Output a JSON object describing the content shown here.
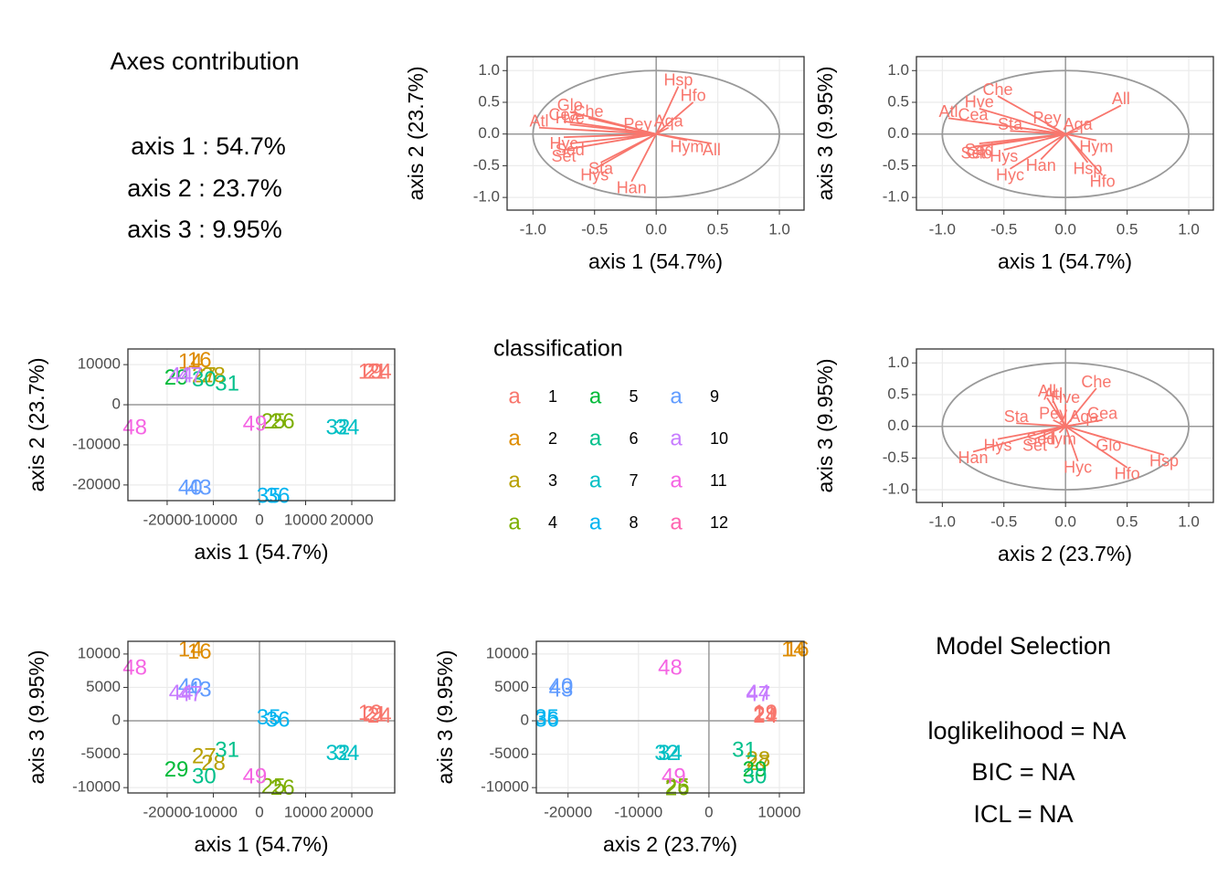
{
  "axes_contribution": {
    "title": "Axes contribution",
    "lines": [
      "axis 1 : 54.7%",
      "axis 2 : 23.7%",
      "axis 3 : 9.95%"
    ]
  },
  "model_selection": {
    "title": "Model Selection",
    "lines": [
      "loglikelihood = NA",
      "BIC = NA",
      "ICL = NA"
    ]
  },
  "legend": {
    "title": "classification",
    "key_glyph": "a",
    "classes": [
      "1",
      "2",
      "3",
      "4",
      "5",
      "6",
      "7",
      "8",
      "9",
      "10",
      "11",
      "12"
    ],
    "colors": [
      "#F8766D",
      "#DE8C00",
      "#B79F00",
      "#7CAE00",
      "#00BA38",
      "#00C08B",
      "#00BFC4",
      "#00B4F0",
      "#619CFF",
      "#C77CFF",
      "#F564E3",
      "#FF64B0"
    ]
  },
  "chart_data": [
    {
      "type": "correlation-circle",
      "xlabel": "axis 1 (54.7%)",
      "ylabel": "axis 2 (23.7%)",
      "color": "#F8766D",
      "xlim": [
        -1.21,
        1.2
      ],
      "ylim": [
        -1.2,
        1.22
      ],
      "xticks": [
        {
          "value": -1,
          "label": "-1.0"
        },
        -0.5,
        {
          "value": 0,
          "label": "0.0"
        },
        0.5,
        {
          "value": 1,
          "label": "1.0"
        }
      ],
      "yticks": [
        {
          "value": -1,
          "label": "-1.0"
        },
        -0.5,
        {
          "value": 0,
          "label": "0.0"
        },
        0.5,
        {
          "value": 1,
          "label": "1.0"
        }
      ],
      "variables": [
        "Hsp",
        "Hfo",
        "Aqa",
        "Hym",
        "All",
        "Han",
        "Sta",
        "Hys",
        "Set",
        "Sed",
        "Hyc",
        "Glo",
        "Che",
        "Atl",
        "Hve",
        "Cea",
        "Pey"
      ],
      "x": [
        0.18,
        0.3,
        0.1,
        0.25,
        0.45,
        -0.2,
        -0.45,
        -0.5,
        -0.75,
        -0.7,
        -0.75,
        -0.7,
        -0.55,
        -0.95,
        -0.7,
        -0.75,
        -0.15
      ],
      "y": [
        0.75,
        0.5,
        0.1,
        -0.1,
        -0.15,
        -0.75,
        -0.45,
        -0.55,
        -0.25,
        -0.15,
        -0.05,
        0.35,
        0.25,
        0.1,
        0.15,
        0.2,
        0.05
      ]
    },
    {
      "type": "correlation-circle",
      "xlabel": "axis 1 (54.7%)",
      "ylabel": "axis 3 (9.95%)",
      "color": "#F8766D",
      "xlim": [
        -1.21,
        1.2
      ],
      "ylim": [
        -1.2,
        1.22
      ],
      "xticks": [
        {
          "value": -1,
          "label": "-1.0"
        },
        -0.5,
        {
          "value": 0,
          "label": "0.0"
        },
        0.5,
        {
          "value": 1,
          "label": "1.0"
        }
      ],
      "yticks": [
        {
          "value": -1,
          "label": "-1.0"
        },
        -0.5,
        {
          "value": 0,
          "label": "0.0"
        },
        0.5,
        {
          "value": 1,
          "label": "1.0"
        }
      ],
      "variables": [
        "Hsp",
        "Hfo",
        "Aqa",
        "Hym",
        "All",
        "Han",
        "Sta",
        "Hys",
        "Set",
        "Sed",
        "Hyc",
        "Glo",
        "Che",
        "Atl",
        "Hve",
        "Cea",
        "Pey"
      ],
      "x": [
        0.18,
        0.3,
        0.1,
        0.25,
        0.45,
        -0.2,
        -0.45,
        -0.5,
        -0.75,
        -0.7,
        -0.45,
        -0.7,
        -0.55,
        -0.95,
        -0.7,
        -0.75,
        -0.15
      ],
      "y": [
        -0.45,
        -0.65,
        0.05,
        -0.1,
        0.45,
        -0.4,
        0.05,
        -0.25,
        -0.2,
        -0.15,
        -0.55,
        -0.2,
        0.6,
        0.25,
        0.4,
        0.2,
        0.15
      ]
    },
    {
      "type": "scatter",
      "xlabel": "axis 1 (54.7%)",
      "ylabel": "axis 2 (23.7%)",
      "xlim": [
        -28500,
        29300
      ],
      "ylim": [
        -23900,
        13900
      ],
      "xticks": [
        -20000,
        -10000,
        0,
        10000,
        20000
      ],
      "yticks": [
        -20000,
        -10000,
        0,
        10000
      ],
      "labels": [
        "19",
        "21",
        "24",
        "14",
        "16",
        "27",
        "28",
        "25",
        "26",
        "29",
        "30",
        "31",
        "32",
        "34",
        "35",
        "36",
        "40",
        "43",
        "44",
        "47",
        "48",
        "49"
      ],
      "classes": [
        "1",
        "1",
        "1",
        "2",
        "2",
        "3",
        "3",
        "4",
        "4",
        "5",
        "6",
        "6",
        "7",
        "7",
        "8",
        "8",
        "9",
        "9",
        "10",
        "10",
        "11",
        "11"
      ],
      "x": [
        24000,
        25000,
        26000,
        -15000,
        -13000,
        -12000,
        -10000,
        3000,
        5000,
        -18000,
        -12000,
        -7000,
        17000,
        19000,
        2000,
        4000,
        -15000,
        -13000,
        -17000,
        -15000,
        -27000,
        -1000
      ],
      "y": [
        8000,
        8000,
        8000,
        10500,
        10800,
        7000,
        7000,
        -4500,
        -4500,
        6500,
        6000,
        5000,
        -6000,
        -6000,
        -23000,
        -23000,
        -21000,
        -21000,
        7000,
        7000,
        -6000,
        -5000
      ]
    },
    {
      "type": "correlation-circle",
      "xlabel": "axis 2 (23.7%)",
      "ylabel": "axis 3 (9.95%)",
      "color": "#F8766D",
      "xlim": [
        -1.21,
        1.2
      ],
      "ylim": [
        -1.2,
        1.22
      ],
      "xticks": [
        {
          "value": -1,
          "label": "-1.0"
        },
        -0.5,
        {
          "value": 0,
          "label": "0.0"
        },
        0.5,
        {
          "value": 1,
          "label": "1.0"
        }
      ],
      "yticks": [
        {
          "value": -1,
          "label": "-1.0"
        },
        -0.5,
        {
          "value": 0,
          "label": "0.0"
        },
        0.5,
        {
          "value": 1,
          "label": "1.0"
        }
      ],
      "variables": [
        "Hsp",
        "Hfo",
        "Aqa",
        "Hym",
        "All",
        "Han",
        "Sta",
        "Hys",
        "Set",
        "Sed",
        "Hyc",
        "Glo",
        "Che",
        "Atl",
        "Hve",
        "Cea",
        "Pey"
      ],
      "x": [
        0.8,
        0.5,
        0.15,
        -0.05,
        -0.15,
        -0.75,
        -0.4,
        -0.55,
        -0.25,
        -0.2,
        0.1,
        0.35,
        0.25,
        -0.1,
        0.0,
        0.3,
        -0.1
      ],
      "y": [
        -0.45,
        -0.65,
        0.05,
        -0.1,
        0.45,
        -0.4,
        0.05,
        -0.2,
        -0.2,
        -0.1,
        -0.55,
        -0.2,
        0.6,
        0.4,
        0.35,
        0.1,
        0.1
      ]
    },
    {
      "type": "scatter",
      "xlabel": "axis 1 (54.7%)",
      "ylabel": "axis 3 (9.95%)",
      "xlim": [
        -28500,
        29300
      ],
      "ylim": [
        -10800,
        11900
      ],
      "xticks": [
        -20000,
        -10000,
        0,
        10000,
        20000
      ],
      "yticks": [
        -10000,
        -5000,
        0,
        5000,
        10000
      ],
      "labels": [
        "19",
        "21",
        "24",
        "14",
        "16",
        "27",
        "28",
        "25",
        "26",
        "29",
        "30",
        "31",
        "32",
        "34",
        "35",
        "36",
        "40",
        "43",
        "44",
        "47",
        "48",
        "49"
      ],
      "classes": [
        "1",
        "1",
        "1",
        "2",
        "2",
        "3",
        "3",
        "4",
        "4",
        "5",
        "6",
        "6",
        "7",
        "7",
        "8",
        "8",
        "9",
        "9",
        "10",
        "10",
        "11",
        "11"
      ],
      "x": [
        24000,
        25000,
        26000,
        -15000,
        -13000,
        -12000,
        -10000,
        3000,
        5000,
        -18000,
        -12000,
        -7000,
        17000,
        19000,
        2000,
        4000,
        -15000,
        -13000,
        -17000,
        -15000,
        -27000,
        -1000
      ],
      "y": [
        1000,
        800,
        600,
        10500,
        10200,
        -5500,
        -6500,
        -10000,
        -10200,
        -7500,
        -8500,
        -4500,
        -5000,
        -5000,
        300,
        0,
        5000,
        4500,
        4000,
        3800,
        7800,
        -8500
      ]
    },
    {
      "type": "scatter",
      "xlabel": "axis 2 (23.7%)",
      "ylabel": "axis 3 (9.95%)",
      "xlim": [
        -24500,
        13500
      ],
      "ylim": [
        -10800,
        11900
      ],
      "xticks": [
        -20000,
        -10000,
        0,
        10000
      ],
      "yticks": [
        -10000,
        -5000,
        0,
        5000,
        10000
      ],
      "labels": [
        "19",
        "21",
        "24",
        "14",
        "16",
        "27",
        "28",
        "25",
        "26",
        "29",
        "30",
        "31",
        "32",
        "34",
        "35",
        "36",
        "40",
        "43",
        "44",
        "47",
        "48",
        "49"
      ],
      "classes": [
        "1",
        "1",
        "1",
        "2",
        "2",
        "3",
        "3",
        "4",
        "4",
        "5",
        "6",
        "6",
        "7",
        "7",
        "8",
        "8",
        "9",
        "9",
        "10",
        "10",
        "11",
        "11"
      ],
      "x": [
        8000,
        8000,
        8000,
        12000,
        12500,
        7000,
        7000,
        -4500,
        -4500,
        6500,
        6500,
        5000,
        -6000,
        -5500,
        -23000,
        -23000,
        -21000,
        -21000,
        7000,
        7000,
        -5500,
        -5000
      ],
      "y": [
        1000,
        800,
        600,
        10500,
        10500,
        -6500,
        -6000,
        -10000,
        -10300,
        -7500,
        -8500,
        -4500,
        -5000,
        -5000,
        300,
        0,
        5000,
        4500,
        4000,
        3800,
        7800,
        -8500
      ]
    }
  ]
}
